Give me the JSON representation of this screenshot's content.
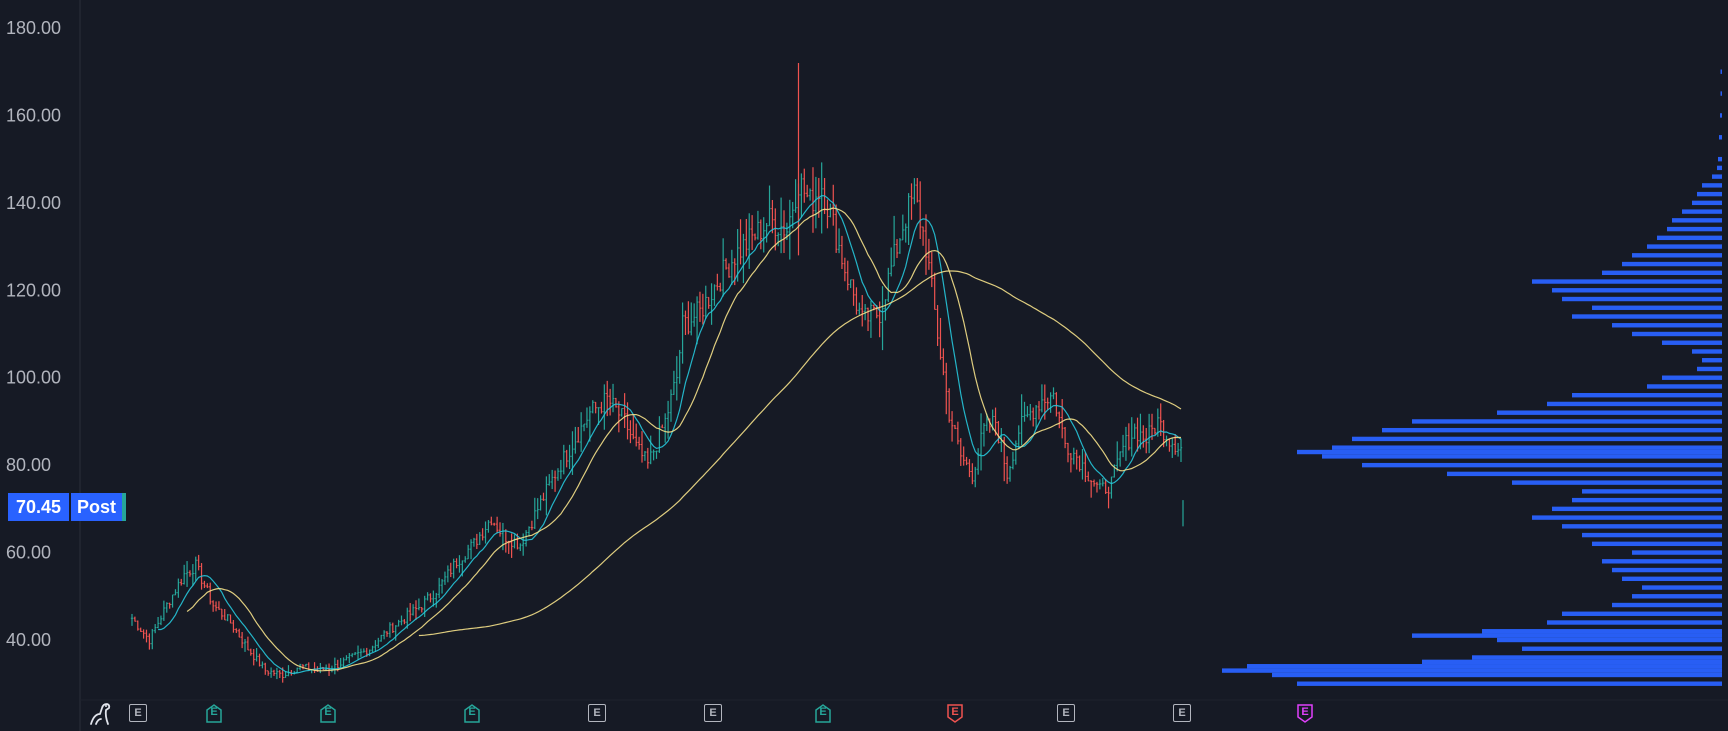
{
  "chart_data": {
    "type": "candlestick",
    "y_axis": {
      "ticks": [
        "180.00",
        "160.00",
        "140.00",
        "120.00",
        "100.00",
        "80.00",
        "60.00",
        "40.00"
      ],
      "ylim": [
        30,
        185
      ]
    },
    "last_price_badge": {
      "value": "70.45",
      "session": "Post"
    },
    "price_path": [
      {
        "i": 0,
        "v": 45
      },
      {
        "i": 6,
        "v": 40
      },
      {
        "i": 12,
        "v": 48
      },
      {
        "i": 18,
        "v": 55
      },
      {
        "i": 22,
        "v": 57
      },
      {
        "i": 28,
        "v": 48
      },
      {
        "i": 34,
        "v": 44
      },
      {
        "i": 40,
        "v": 38
      },
      {
        "i": 46,
        "v": 33
      },
      {
        "i": 52,
        "v": 32
      },
      {
        "i": 58,
        "v": 34
      },
      {
        "i": 64,
        "v": 33
      },
      {
        "i": 70,
        "v": 34
      },
      {
        "i": 76,
        "v": 36
      },
      {
        "i": 82,
        "v": 38
      },
      {
        "i": 88,
        "v": 42
      },
      {
        "i": 94,
        "v": 45
      },
      {
        "i": 100,
        "v": 48
      },
      {
        "i": 106,
        "v": 52
      },
      {
        "i": 112,
        "v": 58
      },
      {
        "i": 118,
        "v": 62
      },
      {
        "i": 124,
        "v": 68
      },
      {
        "i": 128,
        "v": 64
      },
      {
        "i": 134,
        "v": 62
      },
      {
        "i": 140,
        "v": 70
      },
      {
        "i": 146,
        "v": 78
      },
      {
        "i": 152,
        "v": 85
      },
      {
        "i": 158,
        "v": 92
      },
      {
        "i": 164,
        "v": 95
      },
      {
        "i": 170,
        "v": 90
      },
      {
        "i": 174,
        "v": 84
      },
      {
        "i": 178,
        "v": 80
      },
      {
        "i": 184,
        "v": 90
      },
      {
        "i": 188,
        "v": 100
      },
      {
        "i": 190,
        "v": 112
      },
      {
        "i": 196,
        "v": 115
      },
      {
        "i": 202,
        "v": 122
      },
      {
        "i": 208,
        "v": 128
      },
      {
        "i": 214,
        "v": 132
      },
      {
        "i": 220,
        "v": 136
      },
      {
        "i": 226,
        "v": 134
      },
      {
        "i": 230,
        "v": 145
      },
      {
        "i": 234,
        "v": 140
      },
      {
        "i": 238,
        "v": 144
      },
      {
        "i": 242,
        "v": 135
      },
      {
        "i": 246,
        "v": 125
      },
      {
        "i": 252,
        "v": 113
      },
      {
        "i": 258,
        "v": 115
      },
      {
        "i": 262,
        "v": 125
      },
      {
        "i": 266,
        "v": 135
      },
      {
        "i": 270,
        "v": 142
      },
      {
        "i": 274,
        "v": 130
      },
      {
        "i": 278,
        "v": 110
      },
      {
        "i": 282,
        "v": 92
      },
      {
        "i": 286,
        "v": 82
      },
      {
        "i": 290,
        "v": 78
      },
      {
        "i": 294,
        "v": 88
      },
      {
        "i": 298,
        "v": 90
      },
      {
        "i": 302,
        "v": 78
      },
      {
        "i": 306,
        "v": 88
      },
      {
        "i": 310,
        "v": 92
      },
      {
        "i": 314,
        "v": 95
      },
      {
        "i": 318,
        "v": 96
      },
      {
        "i": 322,
        "v": 85
      },
      {
        "i": 326,
        "v": 82
      },
      {
        "i": 330,
        "v": 78
      },
      {
        "i": 334,
        "v": 74
      },
      {
        "i": 338,
        "v": 76
      },
      {
        "i": 342,
        "v": 84
      },
      {
        "i": 346,
        "v": 88
      },
      {
        "i": 350,
        "v": 86
      },
      {
        "i": 354,
        "v": 90
      },
      {
        "i": 358,
        "v": 86
      },
      {
        "i": 362,
        "v": 84
      }
    ],
    "last_bar": {
      "high": 72,
      "low": 66
    },
    "moving_averages": [
      {
        "color": "#26c6da",
        "period": 10
      },
      {
        "color": "#f5e18a",
        "period": 20
      },
      {
        "color": "#f5e18a",
        "period": 100
      }
    ],
    "colors": {
      "up": "#26a69a",
      "down": "#ef5350",
      "background": "#161a25",
      "volume_profile": "#2962ff"
    },
    "volume_profile": [
      {
        "p": 30,
        "w": 0.85
      },
      {
        "p": 32,
        "w": 0.9
      },
      {
        "p": 33,
        "w": 1.0
      },
      {
        "p": 34,
        "w": 0.95
      },
      {
        "p": 35,
        "w": 0.6
      },
      {
        "p": 36,
        "w": 0.5
      },
      {
        "p": 38,
        "w": 0.4
      },
      {
        "p": 40,
        "w": 0.45
      },
      {
        "p": 41,
        "w": 0.62
      },
      {
        "p": 42,
        "w": 0.48
      },
      {
        "p": 44,
        "w": 0.35
      },
      {
        "p": 46,
        "w": 0.32
      },
      {
        "p": 48,
        "w": 0.22
      },
      {
        "p": 50,
        "w": 0.18
      },
      {
        "p": 52,
        "w": 0.16
      },
      {
        "p": 54,
        "w": 0.2
      },
      {
        "p": 56,
        "w": 0.22
      },
      {
        "p": 58,
        "w": 0.24
      },
      {
        "p": 60,
        "w": 0.18
      },
      {
        "p": 62,
        "w": 0.26
      },
      {
        "p": 64,
        "w": 0.28
      },
      {
        "p": 66,
        "w": 0.32
      },
      {
        "p": 68,
        "w": 0.38
      },
      {
        "p": 70,
        "w": 0.34
      },
      {
        "p": 72,
        "w": 0.3
      },
      {
        "p": 74,
        "w": 0.28
      },
      {
        "p": 76,
        "w": 0.42
      },
      {
        "p": 78,
        "w": 0.55
      },
      {
        "p": 80,
        "w": 0.72
      },
      {
        "p": 82,
        "w": 0.8
      },
      {
        "p": 83,
        "w": 0.85
      },
      {
        "p": 84,
        "w": 0.78
      },
      {
        "p": 86,
        "w": 0.74
      },
      {
        "p": 88,
        "w": 0.68
      },
      {
        "p": 90,
        "w": 0.62
      },
      {
        "p": 92,
        "w": 0.45
      },
      {
        "p": 94,
        "w": 0.35
      },
      {
        "p": 96,
        "w": 0.3
      },
      {
        "p": 98,
        "w": 0.15
      },
      {
        "p": 100,
        "w": 0.12
      },
      {
        "p": 102,
        "w": 0.05
      },
      {
        "p": 104,
        "w": 0.04
      },
      {
        "p": 106,
        "w": 0.06
      },
      {
        "p": 108,
        "w": 0.12
      },
      {
        "p": 110,
        "w": 0.18
      },
      {
        "p": 112,
        "w": 0.22
      },
      {
        "p": 114,
        "w": 0.3
      },
      {
        "p": 116,
        "w": 0.26
      },
      {
        "p": 118,
        "w": 0.32
      },
      {
        "p": 120,
        "w": 0.34
      },
      {
        "p": 122,
        "w": 0.38
      },
      {
        "p": 124,
        "w": 0.24
      },
      {
        "p": 126,
        "w": 0.2
      },
      {
        "p": 128,
        "w": 0.18
      },
      {
        "p": 130,
        "w": 0.15
      },
      {
        "p": 132,
        "w": 0.13
      },
      {
        "p": 134,
        "w": 0.11
      },
      {
        "p": 136,
        "w": 0.1
      },
      {
        "p": 138,
        "w": 0.08
      },
      {
        "p": 140,
        "w": 0.06
      },
      {
        "p": 142,
        "w": 0.05
      },
      {
        "p": 144,
        "w": 0.04
      },
      {
        "p": 146,
        "w": 0.02
      },
      {
        "p": 148,
        "w": 0.01
      },
      {
        "p": 150,
        "w": 0.008
      },
      {
        "p": 155,
        "w": 0.006
      },
      {
        "p": 160,
        "w": 0.004
      },
      {
        "p": 165,
        "w": 0.003
      },
      {
        "p": 170,
        "w": 0.003
      }
    ]
  },
  "events": [
    {
      "type": "sq",
      "label": "E",
      "name": "earnings-marker"
    },
    {
      "type": "up",
      "label": "E",
      "name": "earnings-beat-marker"
    },
    {
      "type": "up",
      "label": "E",
      "name": "earnings-beat-marker"
    },
    {
      "type": "up",
      "label": "E",
      "name": "earnings-beat-marker"
    },
    {
      "type": "sq",
      "label": "E",
      "name": "earnings-marker"
    },
    {
      "type": "sq",
      "label": "E",
      "name": "earnings-marker"
    },
    {
      "type": "up",
      "label": "E",
      "name": "earnings-beat-marker"
    },
    {
      "type": "down",
      "label": "E",
      "name": "earnings-miss-marker"
    },
    {
      "type": "sq",
      "label": "E",
      "name": "earnings-marker"
    },
    {
      "type": "sq",
      "label": "E",
      "name": "earnings-marker"
    },
    {
      "type": "future",
      "label": "E",
      "name": "upcoming-earnings-marker"
    }
  ]
}
